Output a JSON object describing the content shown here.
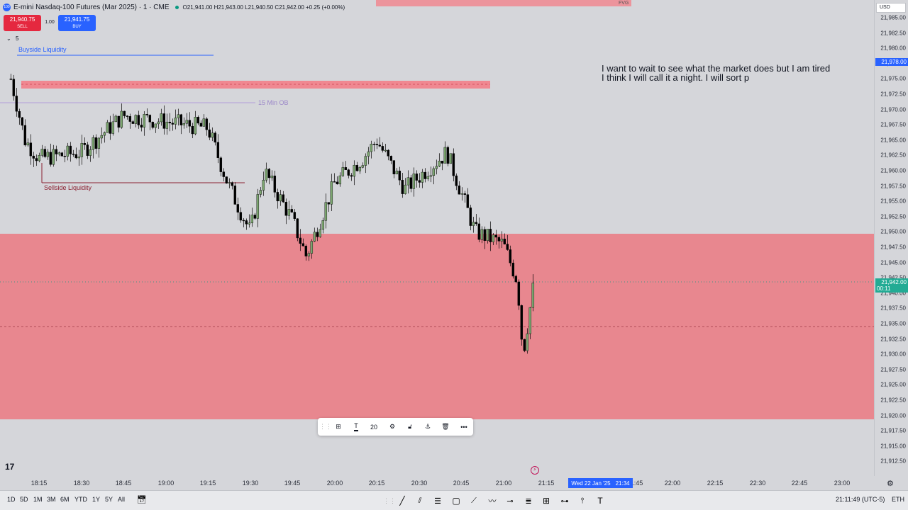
{
  "header": {
    "symbol_logo": "100",
    "title": "E-mini Nasdaq-100 Futures (Mar 2025) · 1 · CME",
    "ohlc": "O21,941.00 H21,943.00 L21,940.50 C21,942.00 +0.25 (+0.00%)"
  },
  "trade": {
    "sell_price": "21,940.75",
    "sell_label": "SELL",
    "buy_price": "21,941.75",
    "buy_label": "BUY",
    "quantity": "1.00"
  },
  "interval_toggle": "5",
  "currency": "USD",
  "labels": {
    "fvg": "FVG",
    "buyside": "Buyside Liquidity",
    "sellside": "Sellside Liquidity",
    "ob": "15 Min OB"
  },
  "note_text": "I want to wait to see what the market does but I am tired\nI think I will call it a night. I will sort p",
  "price_axis": {
    "ticks": [
      "21,985.00",
      "21,982.50",
      "21,980.00",
      "21,977.50",
      "21,975.00",
      "21,972.50",
      "21,970.00",
      "21,967.50",
      "21,965.00",
      "21,962.50",
      "21,960.00",
      "21,957.50",
      "21,955.00",
      "21,952.50",
      "21,950.00",
      "21,947.50",
      "21,945.00",
      "21,942.50",
      "21,940.00",
      "21,937.50",
      "21,935.00",
      "21,932.50",
      "21,930.00",
      "21,927.50",
      "21,925.00",
      "21,922.50",
      "21,920.00",
      "21,917.50",
      "21,915.00",
      "21,912.50"
    ],
    "alert_price": "21,978.00",
    "last_price": "21,942.00",
    "countdown": "00:11"
  },
  "time_axis": {
    "ticks": [
      "18:15",
      "18:30",
      "18:45",
      "19:00",
      "19:15",
      "19:30",
      "19:45",
      "20:00",
      "20:15",
      "20:30",
      "20:45",
      "21:00",
      "21:15",
      "21:45",
      "22:00",
      "22:15",
      "22:30",
      "22:45",
      "23:00"
    ],
    "crosshair_date": "Wed 22 Jan '25",
    "crosshair_time": "21:34"
  },
  "floating_toolbar": {
    "font_size": "20"
  },
  "bottom_bar": {
    "ranges": [
      "1D",
      "5D",
      "1M",
      "3M",
      "6M",
      "YTD",
      "1Y",
      "5Y",
      "All"
    ],
    "clock": "21:11:49 (UTC-5)",
    "session": "ETH"
  },
  "colors": {
    "zone_fill": "#e8878f",
    "zone_strong": "#f08891",
    "up_candle": "#7ca670",
    "down_candle": "#000000",
    "buyside_line": "#2962ff",
    "sellside_line": "#8b2131",
    "ob_line": "#b39ddb"
  },
  "chart_data": {
    "type": "candlestick",
    "interval": "1",
    "price_range": [
      21910,
      21987
    ],
    "time_range": [
      "18:05",
      "23:05"
    ],
    "approx_close_path": [
      {
        "t": "18:05",
        "p": 21975
      },
      {
        "t": "18:10",
        "p": 21965
      },
      {
        "t": "18:15",
        "p": 21962
      },
      {
        "t": "18:30",
        "p": 21963
      },
      {
        "t": "18:45",
        "p": 21969
      },
      {
        "t": "19:00",
        "p": 21968
      },
      {
        "t": "19:15",
        "p": 21967
      },
      {
        "t": "19:22",
        "p": 21958
      },
      {
        "t": "19:30",
        "p": 21950
      },
      {
        "t": "19:35",
        "p": 21960
      },
      {
        "t": "19:45",
        "p": 21952
      },
      {
        "t": "19:50",
        "p": 21946
      },
      {
        "t": "20:00",
        "p": 21958
      },
      {
        "t": "20:10",
        "p": 21962
      },
      {
        "t": "20:15",
        "p": 21965
      },
      {
        "t": "20:25",
        "p": 21957
      },
      {
        "t": "20:35",
        "p": 21961
      },
      {
        "t": "20:40",
        "p": 21963
      },
      {
        "t": "20:50",
        "p": 21950
      },
      {
        "t": "21:00",
        "p": 21948
      },
      {
        "t": "21:05",
        "p": 21942
      },
      {
        "t": "21:07",
        "p": 21930
      },
      {
        "t": "21:11",
        "p": 21942
      }
    ],
    "zones": [
      {
        "name": "FVG",
        "price_range": [
          21986.5,
          21985.6
        ]
      },
      {
        "name": "zone",
        "price_range": [
          21975.2,
          21974.0
        ]
      },
      {
        "name": "zone",
        "price_range": [
          21950.0,
          21920.2
        ]
      }
    ],
    "levels": [
      {
        "name": "Buyside Liquidity",
        "price": 21979.5
      },
      {
        "name": "15 Min OB",
        "price": 21971.5
      },
      {
        "name": "Sellside Liquidity",
        "price": 21957.8
      }
    ]
  }
}
